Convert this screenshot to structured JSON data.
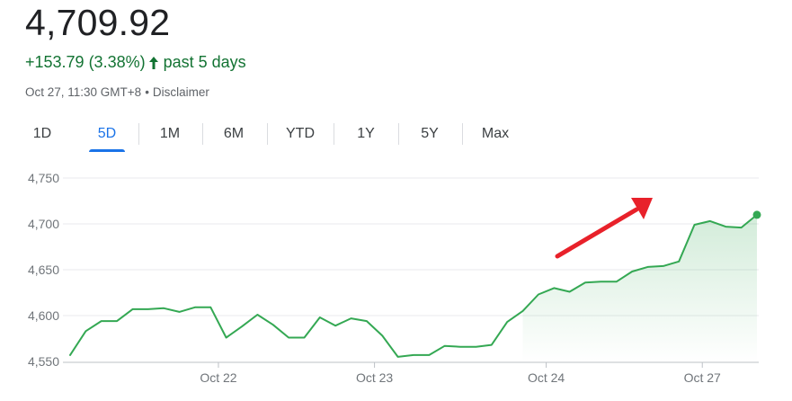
{
  "quote": {
    "price": "4,709.92",
    "change": "+153.79 (3.38%)",
    "period": "past 5 days",
    "timestamp": "Oct 27, 11:30 GMT+8",
    "separator": "•",
    "disclaimer": "Disclaimer",
    "positive_color": "#137333"
  },
  "tabs": [
    {
      "label": "1D",
      "active": false
    },
    {
      "label": "5D",
      "active": true
    },
    {
      "label": "1M",
      "active": false
    },
    {
      "label": "6M",
      "active": false
    },
    {
      "label": "YTD",
      "active": false
    },
    {
      "label": "1Y",
      "active": false
    },
    {
      "label": "5Y",
      "active": false
    },
    {
      "label": "Max",
      "active": false
    }
  ],
  "chart_data": {
    "type": "line",
    "x_tick_labels": [
      "Oct 22",
      "Oct 23",
      "Oct 24",
      "Oct 27"
    ],
    "y_tick_labels": [
      "4,750",
      "4,700",
      "4,650",
      "4,600",
      "4,550"
    ],
    "ylim": [
      4550,
      4750
    ],
    "grid": true,
    "series": [
      {
        "color": "#34a853",
        "fill": "area-gradient",
        "values": [
          4557,
          4583,
          4594,
          4594,
          4607,
          4607,
          4608,
          4604,
          4609,
          4609,
          4576,
          4588,
          4601,
          4590,
          4576,
          4576,
          4598,
          4589,
          4597,
          4594,
          4578,
          4555,
          4557,
          4557,
          4567,
          4566,
          4566,
          4568,
          4593,
          4605,
          4623,
          4630,
          4626,
          4636,
          4637,
          4637,
          4648,
          4653,
          4654,
          4659,
          4699,
          4703,
          4697,
          4696,
          4709.92
        ]
      }
    ],
    "annotation": {
      "type": "arrow",
      "color": "#e8212a",
      "direction": "up-right"
    }
  }
}
